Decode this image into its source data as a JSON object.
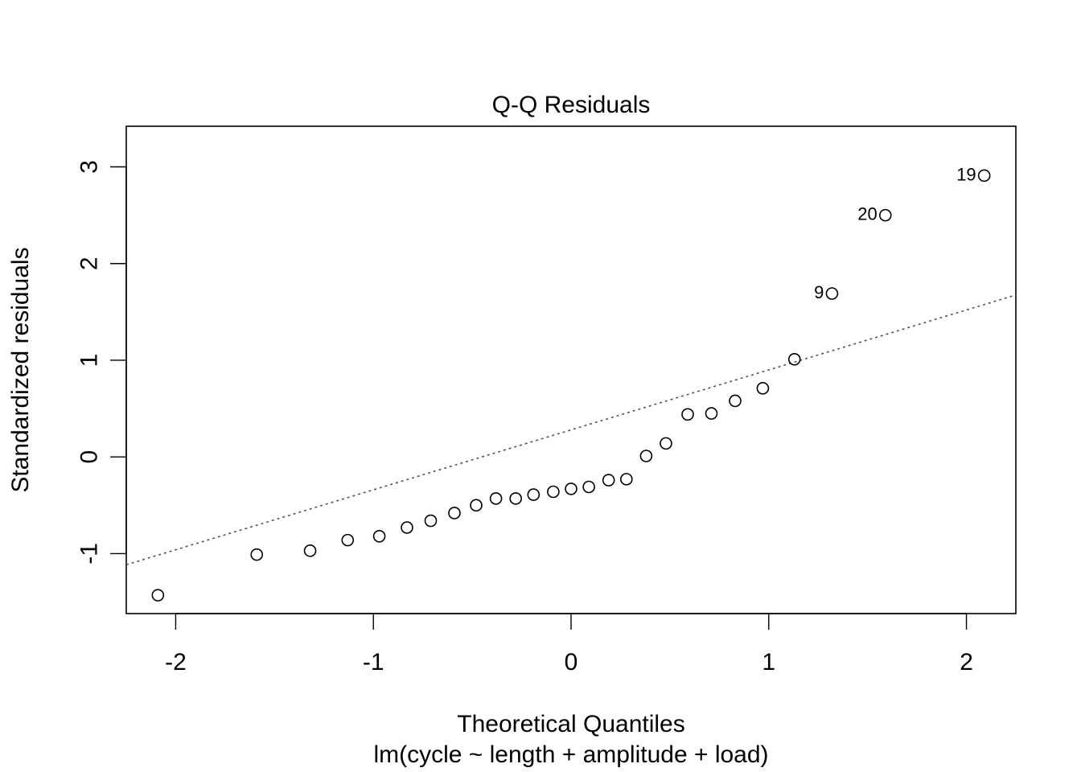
{
  "chart_data": {
    "type": "scatter",
    "title": "Q-Q Residuals",
    "xlabel": "Theoretical Quantiles",
    "subtitle": "lm(cycle ~ length + amplitude + load)",
    "ylabel": "Standardized residuals",
    "xlim": [
      -2.25,
      2.25
    ],
    "ylim": [
      -1.62,
      3.42
    ],
    "x_ticks": [
      -2,
      -1,
      0,
      1,
      2
    ],
    "x_tick_labels": [
      "-2",
      "-1",
      "0",
      "1",
      "2"
    ],
    "y_ticks": [
      -1,
      0,
      1,
      2,
      3
    ],
    "y_tick_labels": [
      "-1",
      "0",
      "1",
      "2",
      "3"
    ],
    "grid": false,
    "legend": "none",
    "reference_line": {
      "intercept": 0.28,
      "slope": 0.62,
      "style": "dotted",
      "color": "#555555"
    },
    "points": [
      {
        "x": -2.09,
        "y": -1.43
      },
      {
        "x": -1.59,
        "y": -1.01
      },
      {
        "x": -1.32,
        "y": -0.97
      },
      {
        "x": -1.13,
        "y": -0.86
      },
      {
        "x": -0.97,
        "y": -0.82
      },
      {
        "x": -0.83,
        "y": -0.73
      },
      {
        "x": -0.71,
        "y": -0.66
      },
      {
        "x": -0.59,
        "y": -0.58
      },
      {
        "x": -0.48,
        "y": -0.5
      },
      {
        "x": -0.38,
        "y": -0.43
      },
      {
        "x": -0.28,
        "y": -0.43
      },
      {
        "x": -0.19,
        "y": -0.39
      },
      {
        "x": -0.09,
        "y": -0.36
      },
      {
        "x": 0.0,
        "y": -0.33
      },
      {
        "x": 0.09,
        "y": -0.31
      },
      {
        "x": 0.19,
        "y": -0.24
      },
      {
        "x": 0.28,
        "y": -0.23
      },
      {
        "x": 0.38,
        "y": 0.01
      },
      {
        "x": 0.48,
        "y": 0.14
      },
      {
        "x": 0.59,
        "y": 0.44
      },
      {
        "x": 0.71,
        "y": 0.45
      },
      {
        "x": 0.83,
        "y": 0.58
      },
      {
        "x": 0.97,
        "y": 0.71
      },
      {
        "x": 1.13,
        "y": 1.01
      },
      {
        "x": 1.32,
        "y": 1.69,
        "label": "9"
      },
      {
        "x": 1.59,
        "y": 2.5,
        "label": "20"
      },
      {
        "x": 2.09,
        "y": 2.91,
        "label": "19"
      }
    ]
  }
}
